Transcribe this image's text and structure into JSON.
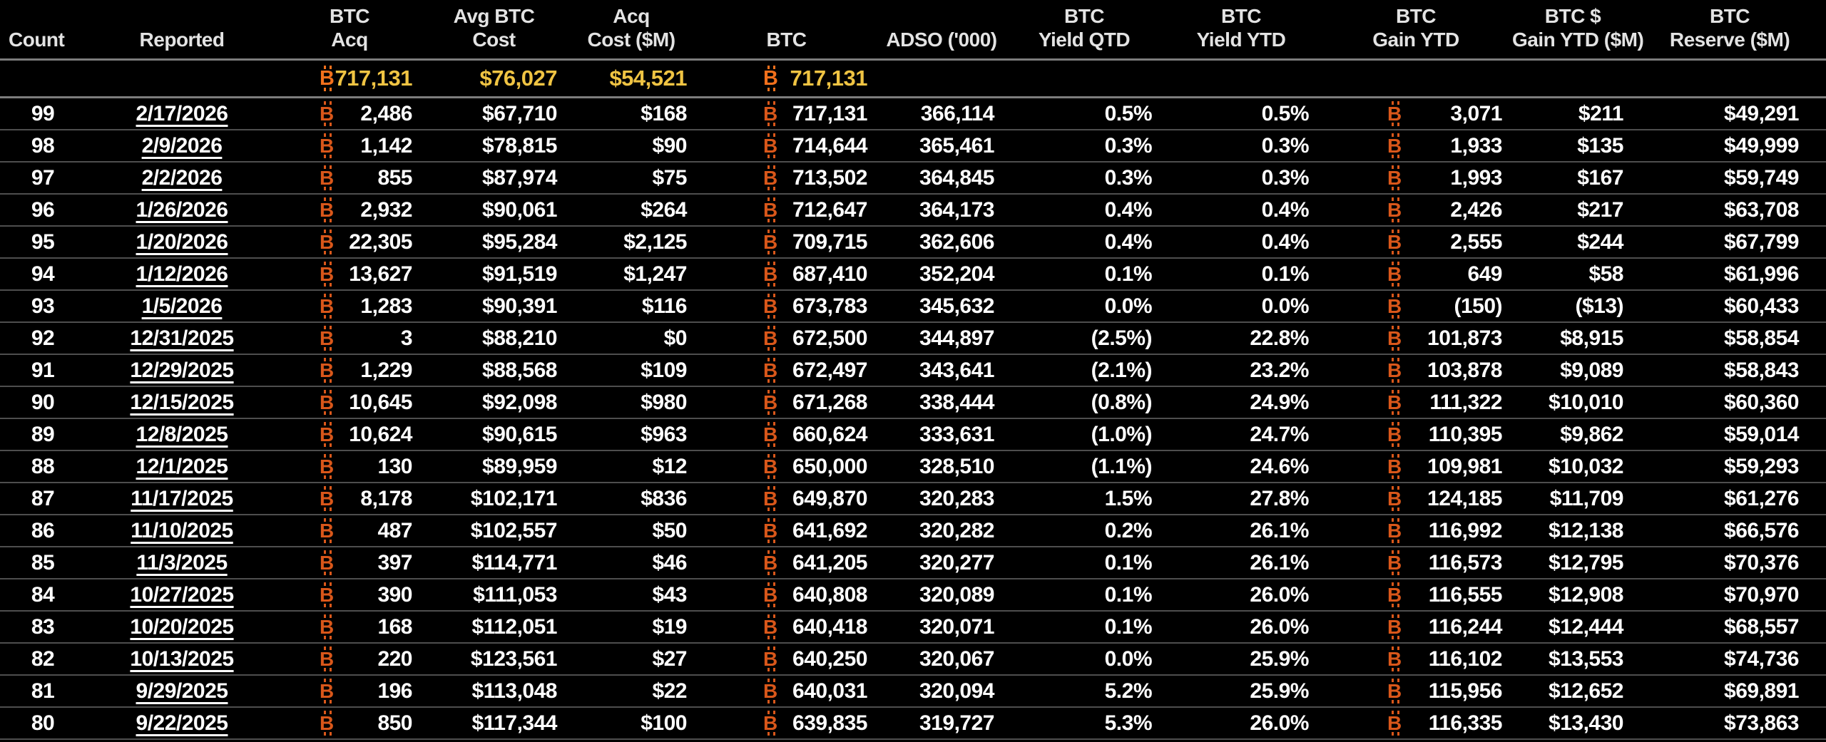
{
  "icons": {
    "btc_symbol": "B"
  },
  "colors": {
    "background": "#000000",
    "row_text": "#ffffff",
    "header_text": "#e3e3e3",
    "btc_symbol": "#d9571a",
    "btc_symbol_summary": "#f2701c",
    "summary_value": "#f0c443",
    "row_divider": "#4e4e4e",
    "section_divider": "#7d7d7d"
  },
  "table": {
    "columns": [
      {
        "id": "count",
        "line1": "",
        "line2": "Count"
      },
      {
        "id": "reported",
        "line1": "",
        "line2": "Reported"
      },
      {
        "id": "btc_acq",
        "line1": "BTC",
        "line2": "Acq",
        "btc": true
      },
      {
        "id": "avg_btc_cost",
        "line1": "Avg BTC",
        "line2": "Cost"
      },
      {
        "id": "acq_cost_m",
        "line1": "Acq",
        "line2": "Cost ($M)"
      },
      {
        "id": "btc",
        "line1": "",
        "line2": "BTC",
        "btc": true
      },
      {
        "id": "adso",
        "line1": "",
        "line2": "ADSO ('000)"
      },
      {
        "id": "yield_qtd",
        "line1": "BTC",
        "line2": "Yield QTD"
      },
      {
        "id": "yield_ytd",
        "line1": "BTC",
        "line2": "Yield YTD"
      },
      {
        "id": "gain_ytd",
        "line1": "BTC",
        "line2": "Gain YTD",
        "btc": true
      },
      {
        "id": "gain_ytd_m",
        "line1": "BTC $",
        "line2": "Gain YTD ($M)"
      },
      {
        "id": "reserve_m",
        "line1": "BTC",
        "line2": "Reserve ($M)"
      }
    ],
    "summary": {
      "btc_acq": "717,131",
      "avg_btc_cost": "$76,027",
      "acq_cost_m": "$54,521",
      "btc": "717,131"
    },
    "rows": [
      {
        "count": "99",
        "reported": "2/17/2026",
        "btc_acq": "2,486",
        "avg_btc_cost": "$67,710",
        "acq_cost_m": "$168",
        "btc": "717,131",
        "adso": "366,114",
        "yield_qtd": "0.5%",
        "yield_ytd": "0.5%",
        "gain_ytd": "3,071",
        "gain_ytd_m": "$211",
        "reserve_m": "$49,291"
      },
      {
        "count": "98",
        "reported": "2/9/2026",
        "btc_acq": "1,142",
        "avg_btc_cost": "$78,815",
        "acq_cost_m": "$90",
        "btc": "714,644",
        "adso": "365,461",
        "yield_qtd": "0.3%",
        "yield_ytd": "0.3%",
        "gain_ytd": "1,933",
        "gain_ytd_m": "$135",
        "reserve_m": "$49,999"
      },
      {
        "count": "97",
        "reported": "2/2/2026",
        "btc_acq": "855",
        "avg_btc_cost": "$87,974",
        "acq_cost_m": "$75",
        "btc": "713,502",
        "adso": "364,845",
        "yield_qtd": "0.3%",
        "yield_ytd": "0.3%",
        "gain_ytd": "1,993",
        "gain_ytd_m": "$167",
        "reserve_m": "$59,749"
      },
      {
        "count": "96",
        "reported": "1/26/2026",
        "btc_acq": "2,932",
        "avg_btc_cost": "$90,061",
        "acq_cost_m": "$264",
        "btc": "712,647",
        "adso": "364,173",
        "yield_qtd": "0.4%",
        "yield_ytd": "0.4%",
        "gain_ytd": "2,426",
        "gain_ytd_m": "$217",
        "reserve_m": "$63,708"
      },
      {
        "count": "95",
        "reported": "1/20/2026",
        "btc_acq": "22,305",
        "avg_btc_cost": "$95,284",
        "acq_cost_m": "$2,125",
        "btc": "709,715",
        "adso": "362,606",
        "yield_qtd": "0.4%",
        "yield_ytd": "0.4%",
        "gain_ytd": "2,555",
        "gain_ytd_m": "$244",
        "reserve_m": "$67,799"
      },
      {
        "count": "94",
        "reported": "1/12/2026",
        "btc_acq": "13,627",
        "avg_btc_cost": "$91,519",
        "acq_cost_m": "$1,247",
        "btc": "687,410",
        "adso": "352,204",
        "yield_qtd": "0.1%",
        "yield_ytd": "0.1%",
        "gain_ytd": "649",
        "gain_ytd_m": "$58",
        "reserve_m": "$61,996"
      },
      {
        "count": "93",
        "reported": "1/5/2026",
        "btc_acq": "1,283",
        "avg_btc_cost": "$90,391",
        "acq_cost_m": "$116",
        "btc": "673,783",
        "adso": "345,632",
        "yield_qtd": "0.0%",
        "yield_ytd": "0.0%",
        "gain_ytd": "(150)",
        "gain_ytd_m": "($13)",
        "reserve_m": "$60,433"
      },
      {
        "count": "92",
        "reported": "12/31/2025",
        "btc_acq": "3",
        "avg_btc_cost": "$88,210",
        "acq_cost_m": "$0",
        "btc": "672,500",
        "adso": "344,897",
        "yield_qtd": "(2.5%)",
        "yield_ytd": "22.8%",
        "gain_ytd": "101,873",
        "gain_ytd_m": "$8,915",
        "reserve_m": "$58,854"
      },
      {
        "count": "91",
        "reported": "12/29/2025",
        "btc_acq": "1,229",
        "avg_btc_cost": "$88,568",
        "acq_cost_m": "$109",
        "btc": "672,497",
        "adso": "343,641",
        "yield_qtd": "(2.1%)",
        "yield_ytd": "23.2%",
        "gain_ytd": "103,878",
        "gain_ytd_m": "$9,089",
        "reserve_m": "$58,843"
      },
      {
        "count": "90",
        "reported": "12/15/2025",
        "btc_acq": "10,645",
        "avg_btc_cost": "$92,098",
        "acq_cost_m": "$980",
        "btc": "671,268",
        "adso": "338,444",
        "yield_qtd": "(0.8%)",
        "yield_ytd": "24.9%",
        "gain_ytd": "111,322",
        "gain_ytd_m": "$10,010",
        "reserve_m": "$60,360"
      },
      {
        "count": "89",
        "reported": "12/8/2025",
        "btc_acq": "10,624",
        "avg_btc_cost": "$90,615",
        "acq_cost_m": "$963",
        "btc": "660,624",
        "adso": "333,631",
        "yield_qtd": "(1.0%)",
        "yield_ytd": "24.7%",
        "gain_ytd": "110,395",
        "gain_ytd_m": "$9,862",
        "reserve_m": "$59,014"
      },
      {
        "count": "88",
        "reported": "12/1/2025",
        "btc_acq": "130",
        "avg_btc_cost": "$89,959",
        "acq_cost_m": "$12",
        "btc": "650,000",
        "adso": "328,510",
        "yield_qtd": "(1.1%)",
        "yield_ytd": "24.6%",
        "gain_ytd": "109,981",
        "gain_ytd_m": "$10,032",
        "reserve_m": "$59,293"
      },
      {
        "count": "87",
        "reported": "11/17/2025",
        "btc_acq": "8,178",
        "avg_btc_cost": "$102,171",
        "acq_cost_m": "$836",
        "btc": "649,870",
        "adso": "320,283",
        "yield_qtd": "1.5%",
        "yield_ytd": "27.8%",
        "gain_ytd": "124,185",
        "gain_ytd_m": "$11,709",
        "reserve_m": "$61,276"
      },
      {
        "count": "86",
        "reported": "11/10/2025",
        "btc_acq": "487",
        "avg_btc_cost": "$102,557",
        "acq_cost_m": "$50",
        "btc": "641,692",
        "adso": "320,282",
        "yield_qtd": "0.2%",
        "yield_ytd": "26.1%",
        "gain_ytd": "116,992",
        "gain_ytd_m": "$12,138",
        "reserve_m": "$66,576"
      },
      {
        "count": "85",
        "reported": "11/3/2025",
        "btc_acq": "397",
        "avg_btc_cost": "$114,771",
        "acq_cost_m": "$46",
        "btc": "641,205",
        "adso": "320,277",
        "yield_qtd": "0.1%",
        "yield_ytd": "26.1%",
        "gain_ytd": "116,573",
        "gain_ytd_m": "$12,795",
        "reserve_m": "$70,376"
      },
      {
        "count": "84",
        "reported": "10/27/2025",
        "btc_acq": "390",
        "avg_btc_cost": "$111,053",
        "acq_cost_m": "$43",
        "btc": "640,808",
        "adso": "320,089",
        "yield_qtd": "0.1%",
        "yield_ytd": "26.0%",
        "gain_ytd": "116,555",
        "gain_ytd_m": "$12,908",
        "reserve_m": "$70,970"
      },
      {
        "count": "83",
        "reported": "10/20/2025",
        "btc_acq": "168",
        "avg_btc_cost": "$112,051",
        "acq_cost_m": "$19",
        "btc": "640,418",
        "adso": "320,071",
        "yield_qtd": "0.1%",
        "yield_ytd": "26.0%",
        "gain_ytd": "116,244",
        "gain_ytd_m": "$12,444",
        "reserve_m": "$68,557"
      },
      {
        "count": "82",
        "reported": "10/13/2025",
        "btc_acq": "220",
        "avg_btc_cost": "$123,561",
        "acq_cost_m": "$27",
        "btc": "640,250",
        "adso": "320,067",
        "yield_qtd": "0.0%",
        "yield_ytd": "25.9%",
        "gain_ytd": "116,102",
        "gain_ytd_m": "$13,553",
        "reserve_m": "$74,736"
      },
      {
        "count": "81",
        "reported": "9/29/2025",
        "btc_acq": "196",
        "avg_btc_cost": "$113,048",
        "acq_cost_m": "$22",
        "btc": "640,031",
        "adso": "320,094",
        "yield_qtd": "5.2%",
        "yield_ytd": "25.9%",
        "gain_ytd": "115,956",
        "gain_ytd_m": "$12,652",
        "reserve_m": "$69,891"
      },
      {
        "count": "80",
        "reported": "9/22/2025",
        "btc_acq": "850",
        "avg_btc_cost": "$117,344",
        "acq_cost_m": "$100",
        "btc": "639,835",
        "adso": "319,727",
        "yield_qtd": "5.3%",
        "yield_ytd": "26.0%",
        "gain_ytd": "116,335",
        "gain_ytd_m": "$13,430",
        "reserve_m": "$73,863"
      }
    ]
  }
}
